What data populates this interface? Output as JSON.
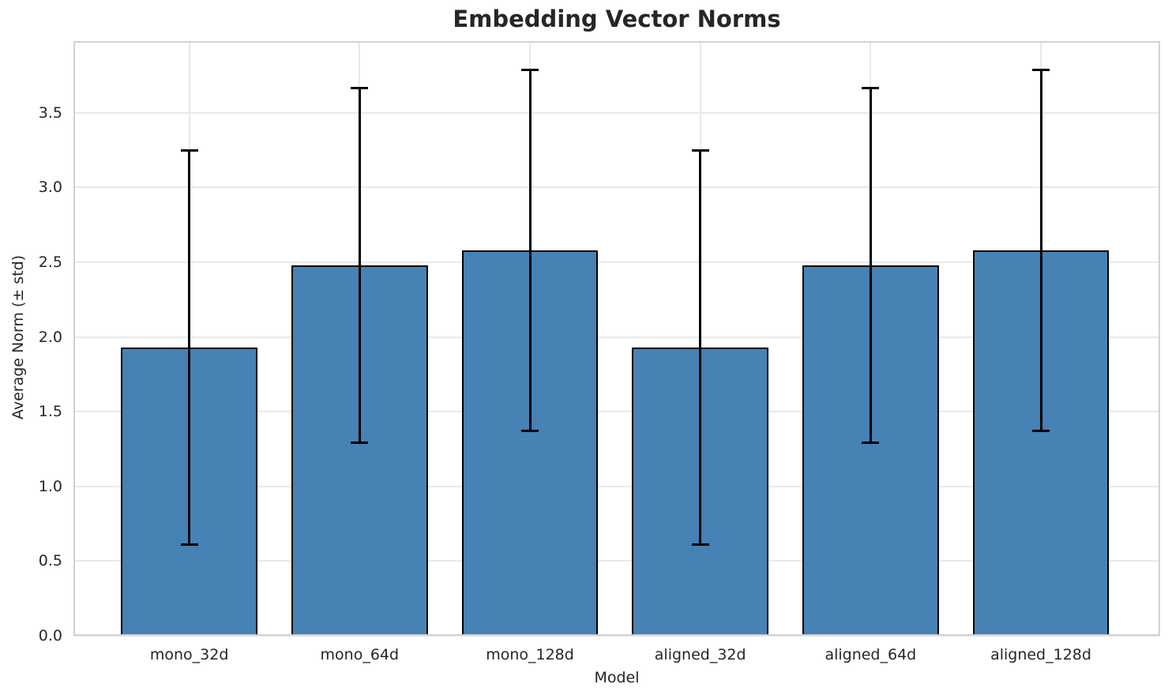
{
  "chart_data": {
    "type": "bar",
    "title": "Embedding Vector Norms",
    "xlabel": "Model",
    "ylabel": "Average Norm (± std)",
    "categories": [
      "mono_32d",
      "mono_64d",
      "mono_128d",
      "aligned_32d",
      "aligned_64d",
      "aligned_128d"
    ],
    "values": [
      1.93,
      2.48,
      2.58,
      1.93,
      2.48,
      2.58
    ],
    "errors": [
      1.32,
      1.19,
      1.21,
      1.32,
      1.19,
      1.21
    ],
    "yticks": [
      0.0,
      0.5,
      1.0,
      1.5,
      2.0,
      2.5,
      3.0,
      3.5
    ],
    "ylim": [
      0,
      3.98
    ],
    "grid": true,
    "legend": false,
    "error_bars": "plus-minus std with caps",
    "colors": {
      "bar_fill": "#4682b4",
      "bar_edge": "#000000",
      "error_bar": "#000000",
      "grid_line": "#e9e9e9",
      "spine": "#d2d2d2",
      "text": "#262626"
    }
  }
}
